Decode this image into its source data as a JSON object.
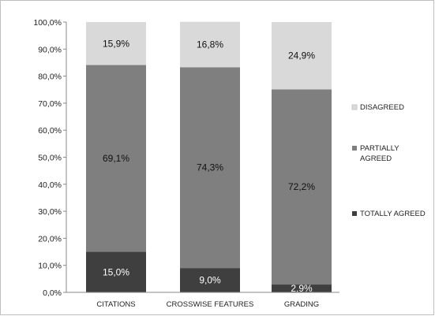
{
  "chart_data": {
    "type": "bar",
    "stacked": true,
    "categories": [
      "CITATIONS",
      "CROSSWISE FEATURES",
      "GRADING"
    ],
    "series": [
      {
        "name": "TOTALLY AGREED",
        "values": [
          15.0,
          9.0,
          2.9
        ],
        "labels": [
          "15,0%",
          "9,0%",
          "2,9%"
        ],
        "color": "#3f3f3f"
      },
      {
        "name": "PARTIALLY AGREED",
        "values": [
          69.1,
          74.3,
          72.2
        ],
        "labels": [
          "69,1%",
          "74,3%",
          "72,2%"
        ],
        "color": "#7f7f7f"
      },
      {
        "name": "DISAGREED",
        "values": [
          15.9,
          16.8,
          24.9
        ],
        "labels": [
          "15,9%",
          "16,8%",
          "24,9%"
        ],
        "color": "#d9d9d9"
      }
    ],
    "legend_order": [
      "DISAGREED",
      "PARTIALLY AGREED",
      "TOTALLY AGREED"
    ],
    "legend_position": "right",
    "ylim": [
      0,
      100
    ],
    "yticks": [
      "0,0%",
      "10,0%",
      "20,0%",
      "30,0%",
      "40,0%",
      "50,0%",
      "60,0%",
      "70,0%",
      "80,0%",
      "90,0%",
      "100,0%"
    ],
    "grid": false,
    "title": "",
    "xlabel": "",
    "ylabel": ""
  }
}
